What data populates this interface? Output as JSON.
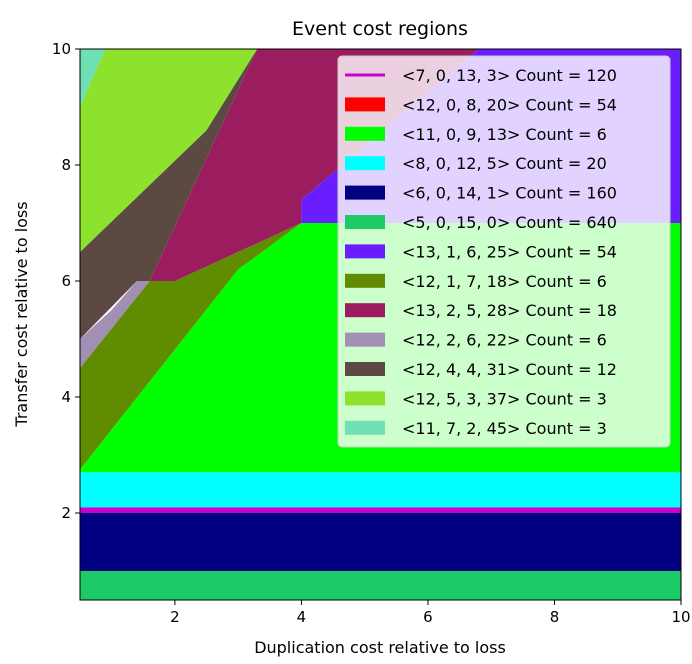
{
  "chart_data": {
    "type": "area",
    "title": "Event cost regions",
    "xlabel": "Duplication cost relative to loss",
    "ylabel": "Transfer cost relative to loss",
    "xlim": [
      0.5,
      10
    ],
    "ylim": [
      0.5,
      10
    ],
    "xticks": [
      2,
      4,
      6,
      8,
      10
    ],
    "yticks": [
      2,
      4,
      6,
      8,
      10
    ],
    "legend_position": "upper-right",
    "series": [
      {
        "name": "<7, 0, 13, 3> Count = 120",
        "color": "#cc00cc",
        "marker": "line",
        "polygons": [
          [
            [
              0.5,
              2.0
            ],
            [
              10,
              2.0
            ],
            [
              10,
              2.1
            ],
            [
              0.5,
              2.1
            ]
          ]
        ]
      },
      {
        "name": "<12, 0, 8, 20> Count = 54",
        "color": "#ff0000",
        "marker": "patch",
        "polygons": [
          [
            [
              7.0,
              10
            ],
            [
              10,
              10
            ],
            [
              10,
              7.0
            ],
            [
              9.6,
              7.0
            ],
            [
              7.0,
              8.4
            ]
          ]
        ]
      },
      {
        "name": "<11, 0, 9, 13> Count = 6",
        "color": "#00ff00",
        "marker": "patch",
        "polygons": [
          [
            [
              0.5,
              2.7
            ],
            [
              10,
              2.7
            ],
            [
              10,
              7.0
            ],
            [
              4.0,
              7.0
            ],
            [
              3.0,
              6.2
            ],
            [
              0.5,
              2.75
            ]
          ]
        ]
      },
      {
        "name": "<8, 0, 12, 5> Count = 20",
        "color": "#00ffff",
        "marker": "patch",
        "polygons": [
          [
            [
              0.5,
              2.1
            ],
            [
              10,
              2.1
            ],
            [
              10,
              2.7
            ],
            [
              0.5,
              2.7
            ]
          ]
        ]
      },
      {
        "name": "<6, 0, 14, 1> Count = 160",
        "color": "#000080",
        "marker": "patch",
        "polygons": [
          [
            [
              0.5,
              1.0
            ],
            [
              10,
              1.0
            ],
            [
              10,
              2.0
            ],
            [
              0.5,
              2.0
            ]
          ]
        ]
      },
      {
        "name": "<5, 0, 15, 0> Count = 640",
        "color": "#1ccb65",
        "marker": "patch",
        "polygons": [
          [
            [
              0.5,
              0.5
            ],
            [
              10,
              0.5
            ],
            [
              10,
              1.0
            ],
            [
              0.5,
              1.0
            ]
          ]
        ]
      },
      {
        "name": "<13, 1, 6, 25> Count = 54",
        "color": "#6a1eff",
        "marker": "patch",
        "polygons": [
          [
            [
              6.8,
              10
            ],
            [
              10,
              10
            ],
            [
              10,
              7.0
            ],
            [
              4.0,
              7.0
            ],
            [
              4.0,
              7.4
            ]
          ]
        ]
      },
      {
        "name": "<12, 1, 7, 18> Count = 6",
        "color": "#5f8c00",
        "marker": "patch",
        "polygons": [
          [
            [
              0.5,
              4.5
            ],
            [
              1.6,
              6.0
            ],
            [
              2.0,
              6.0
            ],
            [
              4.0,
              7.0
            ],
            [
              4.0,
              7.0
            ],
            [
              3.0,
              6.2
            ],
            [
              0.5,
              2.75
            ]
          ]
        ]
      },
      {
        "name": "<13, 2, 5, 28> Count = 18",
        "color": "#9c1c60",
        "marker": "patch",
        "polygons": [
          [
            [
              3.3,
              10
            ],
            [
              6.8,
              10
            ],
            [
              4.0,
              7.4
            ],
            [
              4.0,
              7.0
            ],
            [
              2.0,
              6.0
            ],
            [
              1.6,
              6.0
            ]
          ]
        ]
      },
      {
        "name": "<12, 2, 6, 22> Count = 6",
        "color": "#a28fb4",
        "marker": "patch",
        "polygons": [
          [
            [
              0.5,
              4.5
            ],
            [
              0.5,
              5.0
            ],
            [
              1.0,
              5.5
            ],
            [
              1.4,
              6.0
            ],
            [
              1.6,
              6.0
            ]
          ]
        ]
      },
      {
        "name": "<12, 4, 4, 31> Count = 12",
        "color": "#5c4a42",
        "marker": "patch",
        "polygons": [
          [
            [
              0.5,
              5.0
            ],
            [
              0.5,
              6.5
            ],
            [
              2.5,
              8.6
            ],
            [
              3.3,
              10
            ],
            [
              1.6,
              6.0
            ],
            [
              1.4,
              6.0
            ]
          ]
        ]
      },
      {
        "name": "<12, 5, 3, 37> Count = 3",
        "color": "#8ce22c",
        "marker": "patch",
        "polygons": [
          [
            [
              0.5,
              6.5
            ],
            [
              0.5,
              9.0
            ],
            [
              0.9,
              10
            ],
            [
              3.3,
              10
            ],
            [
              2.5,
              8.6
            ]
          ]
        ]
      },
      {
        "name": "<11, 7, 2, 45> Count = 3",
        "color": "#6ee0b3",
        "marker": "patch",
        "polygons": [
          [
            [
              0.5,
              9.0
            ],
            [
              0.9,
              10
            ],
            [
              0.5,
              10
            ]
          ]
        ]
      }
    ]
  }
}
